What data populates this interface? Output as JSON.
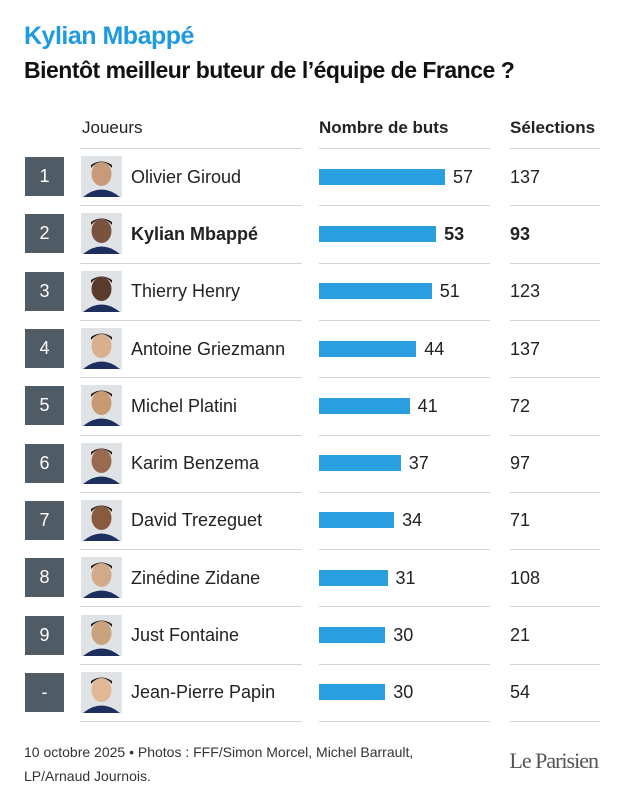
{
  "header": {
    "title": "Kylian Mbappé",
    "subtitle": "Bientôt meilleur buteur de l’équipe de France ?"
  },
  "table": {
    "columns": [
      "Joueurs",
      "Nombre de buts",
      "Sélections"
    ],
    "bar_color": "#2a9fe0",
    "rows": [
      {
        "rank": "1",
        "name": "Olivier Giroud",
        "goals": 57,
        "caps": 137,
        "bold": false
      },
      {
        "rank": "2",
        "name": "Kylian Mbappé",
        "goals": 53,
        "caps": 93,
        "bold": true
      },
      {
        "rank": "3",
        "name": "Thierry Henry",
        "goals": 51,
        "caps": 123,
        "bold": false
      },
      {
        "rank": "4",
        "name": "Antoine Griezmann",
        "goals": 44,
        "caps": 137,
        "bold": false
      },
      {
        "rank": "5",
        "name": "Michel Platini",
        "goals": 41,
        "caps": 72,
        "bold": false
      },
      {
        "rank": "6",
        "name": "Karim Benzema",
        "goals": 37,
        "caps": 97,
        "bold": false
      },
      {
        "rank": "7",
        "name": "David Trezeguet",
        "goals": 34,
        "caps": 71,
        "bold": false
      },
      {
        "rank": "8",
        "name": "Zinédine Zidane",
        "goals": 31,
        "caps": 108,
        "bold": false
      },
      {
        "rank": "9",
        "name": "Just Fontaine",
        "goals": 30,
        "caps": 21,
        "bold": false
      },
      {
        "rank": "-",
        "name": "Jean-Pierre Papin",
        "goals": 30,
        "caps": 54,
        "bold": false
      }
    ]
  },
  "footer": {
    "credit": [
      "10 octobre 2025 • Photos : FFF/Simon Morcel, Michel Barrault,",
      "LP/Arnaud Journois."
    ],
    "logo": "Le Parisien"
  }
}
